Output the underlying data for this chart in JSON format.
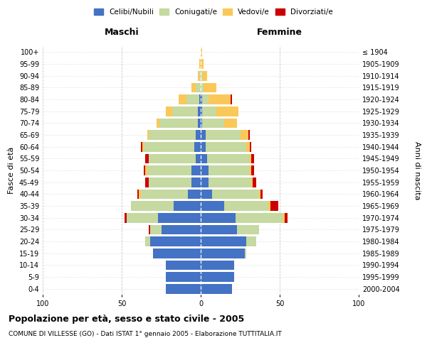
{
  "age_groups": [
    "0-4",
    "5-9",
    "10-14",
    "15-19",
    "20-24",
    "25-29",
    "30-34",
    "35-39",
    "40-44",
    "45-49",
    "50-54",
    "55-59",
    "60-64",
    "65-69",
    "70-74",
    "75-79",
    "80-84",
    "85-89",
    "90-94",
    "95-99",
    "100+"
  ],
  "birth_years": [
    "2000-2004",
    "1995-1999",
    "1990-1994",
    "1985-1989",
    "1980-1984",
    "1975-1979",
    "1970-1974",
    "1965-1969",
    "1960-1964",
    "1955-1959",
    "1950-1954",
    "1945-1949",
    "1940-1944",
    "1935-1939",
    "1930-1934",
    "1925-1929",
    "1920-1924",
    "1915-1919",
    "1910-1914",
    "1905-1909",
    "≤ 1904"
  ],
  "maschi": {
    "celibi": [
      22,
      22,
      22,
      30,
      32,
      25,
      27,
      17,
      8,
      6,
      6,
      3,
      4,
      3,
      2,
      2,
      1,
      0,
      0,
      0,
      0
    ],
    "coniugati": [
      0,
      0,
      0,
      0,
      3,
      7,
      20,
      27,
      30,
      27,
      28,
      30,
      32,
      30,
      24,
      16,
      8,
      3,
      1,
      0,
      0
    ],
    "vedovi": [
      0,
      0,
      0,
      0,
      0,
      0,
      0,
      0,
      1,
      0,
      1,
      0,
      1,
      1,
      2,
      4,
      5,
      3,
      1,
      1,
      0
    ],
    "divorziati": [
      0,
      0,
      0,
      0,
      0,
      1,
      1,
      0,
      1,
      2,
      1,
      2,
      1,
      0,
      0,
      0,
      0,
      0,
      0,
      0,
      0
    ]
  },
  "femmine": {
    "nubili": [
      20,
      21,
      21,
      28,
      29,
      23,
      22,
      15,
      7,
      5,
      5,
      4,
      3,
      3,
      1,
      1,
      1,
      0,
      0,
      0,
      0
    ],
    "coniugate": [
      0,
      0,
      0,
      1,
      6,
      14,
      30,
      28,
      30,
      27,
      26,
      27,
      26,
      22,
      14,
      9,
      4,
      2,
      1,
      0,
      0
    ],
    "vedove": [
      0,
      0,
      0,
      0,
      0,
      0,
      1,
      1,
      1,
      1,
      1,
      1,
      2,
      5,
      8,
      14,
      14,
      8,
      3,
      2,
      1
    ],
    "divorziate": [
      0,
      0,
      0,
      0,
      0,
      0,
      2,
      5,
      1,
      2,
      2,
      2,
      1,
      1,
      0,
      0,
      1,
      0,
      0,
      0,
      0
    ]
  },
  "colors": {
    "celibe": "#4472C4",
    "coniugato": "#C5D9A0",
    "vedovo": "#FAC858",
    "divorziato": "#CC0000"
  },
  "xlim": [
    -100,
    100
  ],
  "title": "Popolazione per età, sesso e stato civile - 2005",
  "subtitle": "COMUNE DI VILLESSE (GO) - Dati ISTAT 1° gennaio 2005 - Elaborazione TUTTITALIA.IT",
  "ylabel_left": "Fasce di età",
  "ylabel_right": "Anni di nascita",
  "xlabel_left": "Maschi",
  "xlabel_right": "Femmine",
  "legend_labels": [
    "Celibi/Nubili",
    "Coniugati/e",
    "Vedovi/e",
    "Divorziati/e"
  ],
  "figsize": [
    6.0,
    5.0
  ],
  "dpi": 100
}
